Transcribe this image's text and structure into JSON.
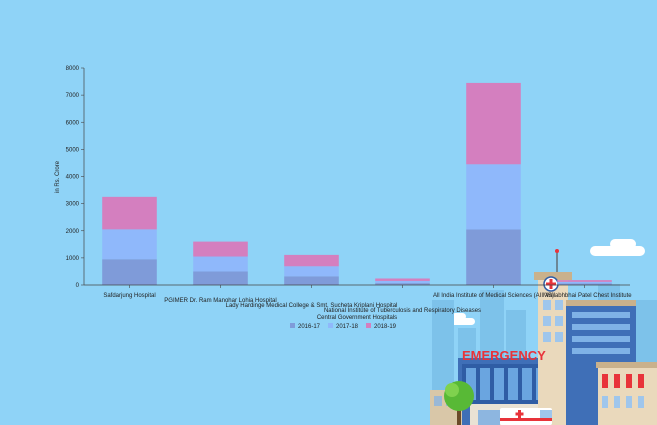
{
  "chart_data": {
    "type": "bar",
    "stacked": true,
    "title": "",
    "xlabel": "Central Government Hospitals",
    "ylabel": "in Rs. Crore",
    "ylim": [
      0,
      8000
    ],
    "yticks": [
      0,
      1000,
      2000,
      3000,
      4000,
      5000,
      6000,
      7000,
      8000
    ],
    "grid": false,
    "legend_position": "bottom",
    "categories": [
      "Safdarjung Hospital",
      "PGIMER Dr. Ram Manohar Lohia Hospital",
      "Lady Hardinge Medical College & Smt. Sucheta Kriplani Hospital",
      "National Institute of Tuberculosis and Respiratory Diseases",
      "All India Institute of Medical Sciences (AIIMS)",
      "Vallabhbhai Patel Chest Institute"
    ],
    "series": [
      {
        "name": "2016-17",
        "color": "#7f9bd9",
        "values": [
          950,
          500,
          320,
          70,
          2050,
          55
        ]
      },
      {
        "name": "2017-18",
        "color": "#8fb8fb",
        "values": [
          1100,
          550,
          370,
          80,
          2400,
          60
        ]
      },
      {
        "name": "2018-19",
        "color": "#d47fbf",
        "values": [
          1200,
          550,
          420,
          90,
          3000,
          65
        ]
      }
    ]
  },
  "illustration": {
    "sign_text": "EMERGENCY",
    "sign_color": "#e8333a"
  }
}
